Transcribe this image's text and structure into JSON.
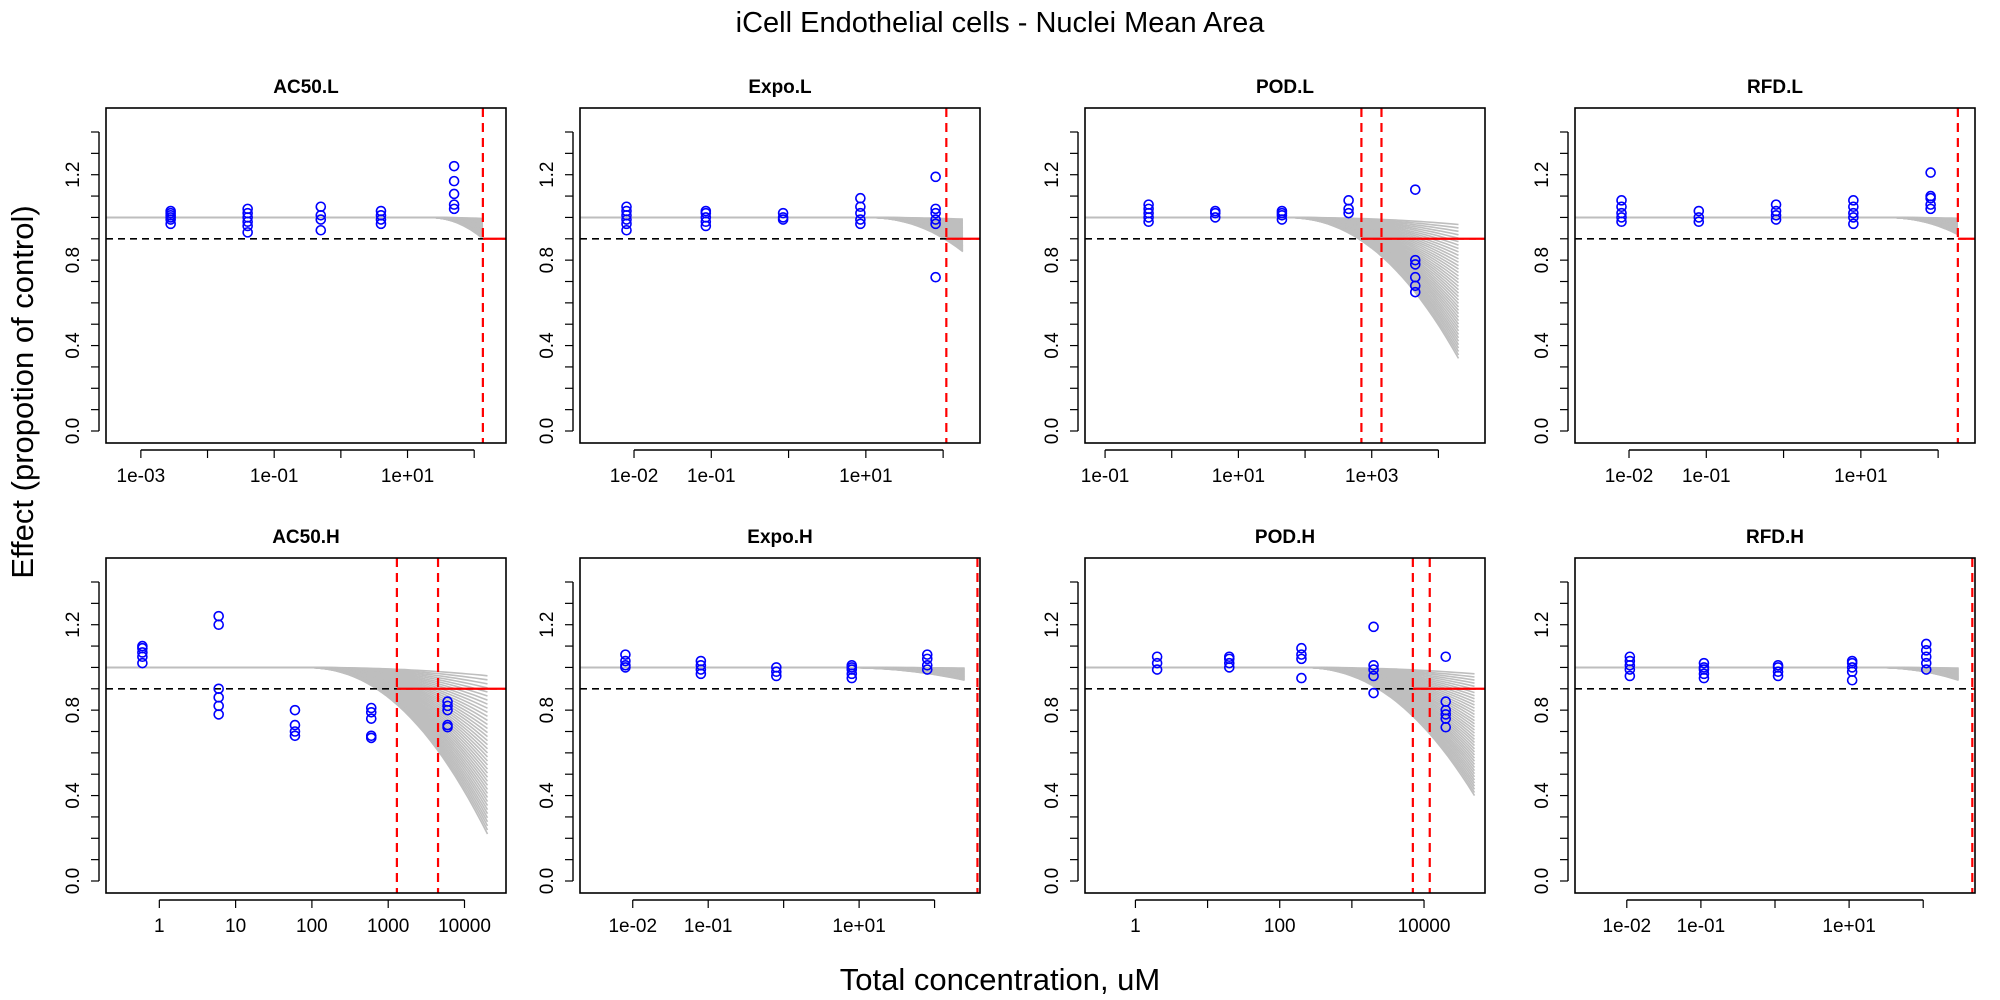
{
  "figure": {
    "title": "iCell Endothelial cells -  Nuclei Mean Area",
    "xlabel": "Total concentration, uM",
    "ylabel": "Effect (propotion of control)"
  },
  "colors": {
    "points": "#0000FF",
    "vline": "#FF0000",
    "curves": "#BEBEBE",
    "hline": "#000000"
  },
  "chart_data": [
    {
      "type": "scatter",
      "title": "AC50.L",
      "xscale": "log",
      "xlim": [
        0.0003,
        300
      ],
      "ylim": [
        0,
        1.4
      ],
      "xticks": [
        0.001,
        0.1,
        10
      ],
      "xticklabels": [
        "1e-03",
        "1e-01",
        "1e+01"
      ],
      "yticks": [
        0.0,
        0.4,
        0.8,
        1.2
      ],
      "yticklabels": [
        "0.0",
        "0.4",
        "0.8",
        "1.2"
      ],
      "hline": 0.9,
      "vlines": [
        135
      ],
      "band": {
        "x_start": 20,
        "x_end": 135,
        "y_low_end": 0.9
      },
      "points": [
        {
          "x": 0.0028,
          "y": [
            0.97,
            0.99,
            1.0,
            1.01,
            1.02,
            1.03
          ]
        },
        {
          "x": 0.04,
          "y": [
            0.93,
            0.96,
            0.98,
            1.0,
            1.02,
            1.04
          ]
        },
        {
          "x": 0.5,
          "y": [
            0.94,
            0.99,
            1.01,
            1.05
          ]
        },
        {
          "x": 4.0,
          "y": [
            0.97,
            0.99,
            1.01,
            1.03
          ]
        },
        {
          "x": 50,
          "y": [
            1.04,
            1.06,
            1.11,
            1.17,
            1.24
          ]
        }
      ]
    },
    {
      "type": "scatter",
      "title": "Expo.L",
      "xscale": "log",
      "xlim": [
        0.002,
        300
      ],
      "ylim": [
        0,
        1.4
      ],
      "xticks": [
        0.01,
        0.1,
        10
      ],
      "xticklabels": [
        "1e-02",
        "1e-01",
        "1e+01"
      ],
      "yticks": [
        0.0,
        0.4,
        0.8,
        1.2
      ],
      "yticklabels": [
        "0.0",
        "0.4",
        "0.8",
        "1.2"
      ],
      "hline": 0.9,
      "vlines": [
        110
      ],
      "band": {
        "x_start": 10,
        "x_end": 180,
        "y_low_end": 0.84
      },
      "points": [
        {
          "x": 0.008,
          "y": [
            0.94,
            0.97,
            0.99,
            1.01,
            1.03,
            1.05
          ]
        },
        {
          "x": 0.085,
          "y": [
            0.96,
            0.98,
            1.0,
            1.02,
            1.03
          ]
        },
        {
          "x": 0.85,
          "y": [
            0.99,
            1.0,
            1.02
          ]
        },
        {
          "x": 8.5,
          "y": [
            0.97,
            0.99,
            1.02,
            1.05,
            1.09
          ]
        },
        {
          "x": 80,
          "y": [
            0.72,
            0.97,
            0.99,
            1.02,
            1.04,
            1.19
          ]
        }
      ]
    },
    {
      "type": "scatter",
      "title": "POD.L",
      "xscale": "log",
      "xlim": [
        0.05,
        50000
      ],
      "ylim": [
        0,
        1.4
      ],
      "xticks": [
        0.1,
        10,
        1000
      ],
      "xticklabels": [
        "1e-01",
        "1e+01",
        "1e+03"
      ],
      "yticks": [
        0.0,
        0.4,
        0.8,
        1.2
      ],
      "yticklabels": [
        "0.0",
        "0.4",
        "0.8",
        "1.2"
      ],
      "hline": 0.9,
      "vlines": [
        700,
        1400
      ],
      "band": {
        "x_start": 50,
        "x_end": 20000,
        "y_low_end": 0.34
      },
      "points": [
        {
          "x": 0.45,
          "y": [
            0.98,
            1.0,
            1.02,
            1.04,
            1.06
          ]
        },
        {
          "x": 4.5,
          "y": [
            1.0,
            1.02,
            1.03
          ]
        },
        {
          "x": 45,
          "y": [
            0.99,
            1.01,
            1.02,
            1.03
          ]
        },
        {
          "x": 450,
          "y": [
            1.02,
            1.04,
            1.08
          ]
        },
        {
          "x": 4500,
          "y": [
            0.65,
            0.68,
            0.72,
            0.78,
            0.8,
            1.13
          ]
        }
      ]
    },
    {
      "type": "scatter",
      "title": "RFD.L",
      "xscale": "log",
      "xlim": [
        0.002,
        300
      ],
      "ylim": [
        0,
        1.4
      ],
      "xticks": [
        0.01,
        0.1,
        10
      ],
      "xticklabels": [
        "1e-02",
        "1e-01",
        "1e+01"
      ],
      "yticks": [
        0.0,
        0.4,
        0.8,
        1.2
      ],
      "yticklabels": [
        "0.0",
        "0.4",
        "0.8",
        "1.2"
      ],
      "hline": 0.9,
      "vlines": [
        180
      ],
      "band": {
        "x_start": 20,
        "x_end": 180,
        "y_low_end": 0.92
      },
      "points": [
        {
          "x": 0.008,
          "y": [
            0.98,
            1.0,
            1.02,
            1.05,
            1.08
          ]
        },
        {
          "x": 0.08,
          "y": [
            0.98,
            1.0,
            1.03
          ]
        },
        {
          "x": 0.8,
          "y": [
            0.99,
            1.01,
            1.03,
            1.06
          ]
        },
        {
          "x": 8.0,
          "y": [
            0.97,
            1.0,
            1.02,
            1.05,
            1.08
          ]
        },
        {
          "x": 80,
          "y": [
            1.04,
            1.06,
            1.09,
            1.1,
            1.21
          ]
        }
      ]
    },
    {
      "type": "scatter",
      "title": "AC50.H",
      "xscale": "log",
      "xlim": [
        0.2,
        35000
      ],
      "ylim": [
        0,
        1.4
      ],
      "xticks": [
        1,
        10,
        100,
        1000,
        10000
      ],
      "xticklabels": [
        "1",
        "10",
        "100",
        "1000",
        "10000"
      ],
      "yticks": [
        0.0,
        0.4,
        0.8,
        1.2
      ],
      "yticklabels": [
        "0.0",
        "0.4",
        "0.8",
        "1.2"
      ],
      "hline": 0.9,
      "vlines": [
        1300,
        4500
      ],
      "band": {
        "x_start": 80,
        "x_end": 20000,
        "y_low_end": 0.22
      },
      "points": [
        {
          "x": 0.6,
          "y": [
            1.02,
            1.05,
            1.07,
            1.09,
            1.1
          ]
        },
        {
          "x": 6,
          "y": [
            0.78,
            0.82,
            0.86,
            0.9,
            1.2,
            1.24
          ]
        },
        {
          "x": 60,
          "y": [
            0.68,
            0.7,
            0.73,
            0.8
          ]
        },
        {
          "x": 600,
          "y": [
            0.67,
            0.68,
            0.76,
            0.79,
            0.81
          ]
        },
        {
          "x": 6000,
          "y": [
            0.72,
            0.73,
            0.8,
            0.82,
            0.84
          ]
        }
      ]
    },
    {
      "type": "scatter",
      "title": "Expo.H",
      "xscale": "log",
      "xlim": [
        0.002,
        400
      ],
      "ylim": [
        0,
        1.4
      ],
      "xticks": [
        0.01,
        0.1,
        10
      ],
      "xticklabels": [
        "1e-02",
        "1e-01",
        "1e+01"
      ],
      "yticks": [
        0.0,
        0.4,
        0.8,
        1.2
      ],
      "yticklabels": [
        "0.0",
        "0.4",
        "0.8",
        "1.2"
      ],
      "hline": 0.9,
      "vlines": [
        370
      ],
      "band": {
        "x_start": 5,
        "x_end": 250,
        "y_low_end": 0.94
      },
      "points": [
        {
          "x": 0.008,
          "y": [
            1.0,
            1.01,
            1.03,
            1.06
          ]
        },
        {
          "x": 0.08,
          "y": [
            0.97,
            0.99,
            1.01,
            1.03
          ]
        },
        {
          "x": 0.8,
          "y": [
            0.96,
            0.98,
            1.0
          ]
        },
        {
          "x": 8,
          "y": [
            0.95,
            0.97,
            0.99,
            1.0,
            1.01
          ]
        },
        {
          "x": 80,
          "y": [
            0.99,
            1.01,
            1.04,
            1.06
          ]
        }
      ]
    },
    {
      "type": "scatter",
      "title": "POD.H",
      "xscale": "log",
      "xlim": [
        0.2,
        70000
      ],
      "ylim": [
        0,
        1.4
      ],
      "xticks": [
        1,
        100,
        10000
      ],
      "xticklabels": [
        "1",
        "100",
        "10000"
      ],
      "yticks": [
        0.0,
        0.4,
        0.8,
        1.2
      ],
      "yticklabels": [
        "0.0",
        "0.4",
        "0.8",
        "1.2"
      ],
      "hline": 0.9,
      "vlines": [
        7000,
        12000
      ],
      "band": {
        "x_start": 200,
        "x_end": 50000,
        "y_low_end": 0.4
      },
      "points": [
        {
          "x": 2,
          "y": [
            0.99,
            1.02,
            1.05
          ]
        },
        {
          "x": 20,
          "y": [
            1.0,
            1.02,
            1.04,
            1.05
          ]
        },
        {
          "x": 200,
          "y": [
            0.95,
            1.04,
            1.06,
            1.09
          ]
        },
        {
          "x": 2000,
          "y": [
            0.88,
            0.96,
            0.99,
            1.01,
            1.19
          ]
        },
        {
          "x": 20000,
          "y": [
            0.72,
            0.76,
            0.78,
            0.8,
            0.84,
            1.05
          ]
        }
      ]
    },
    {
      "type": "scatter",
      "title": "RFD.H",
      "xscale": "log",
      "xlim": [
        0.002,
        500
      ],
      "ylim": [
        0,
        1.4
      ],
      "xticks": [
        0.01,
        0.1,
        10
      ],
      "xticklabels": [
        "1e-02",
        "1e-01",
        "1e+01"
      ],
      "yticks": [
        0.0,
        0.4,
        0.8,
        1.2
      ],
      "yticklabels": [
        "0.0",
        "0.4",
        "0.8",
        "1.2"
      ],
      "hline": 0.9,
      "vlines": [
        460
      ],
      "band": {
        "x_start": 20,
        "x_end": 300,
        "y_low_end": 0.94
      },
      "points": [
        {
          "x": 0.011,
          "y": [
            0.96,
            0.99,
            1.01,
            1.03,
            1.05
          ]
        },
        {
          "x": 0.11,
          "y": [
            0.95,
            0.97,
            0.99,
            1.0,
            1.02
          ]
        },
        {
          "x": 1.1,
          "y": [
            0.96,
            0.98,
            1.0,
            1.01
          ]
        },
        {
          "x": 11,
          "y": [
            0.94,
            0.98,
            1.0,
            1.02,
            1.03
          ]
        },
        {
          "x": 110,
          "y": [
            0.99,
            1.02,
            1.05,
            1.08,
            1.11
          ]
        }
      ]
    }
  ]
}
